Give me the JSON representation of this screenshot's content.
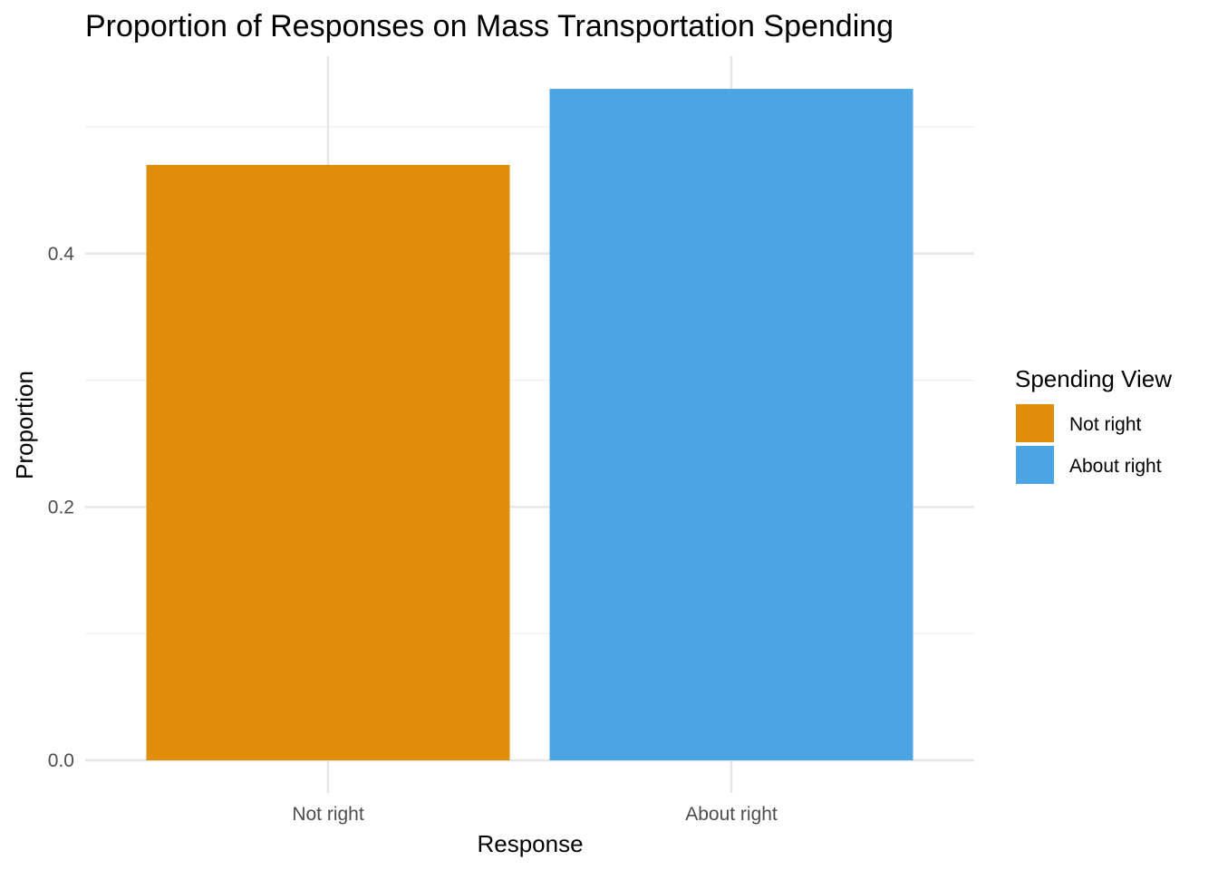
{
  "chart_data": {
    "type": "bar",
    "title": "Proportion of Responses on Mass Transportation Spending",
    "xlabel": "Response",
    "ylabel": "Proportion",
    "categories": [
      "Not right",
      "About right"
    ],
    "values": [
      0.47,
      0.53
    ],
    "colors": [
      "#E08E0A",
      "#4AA5E2"
    ],
    "ylim": [
      0,
      0.55
    ],
    "yticks": [
      0.0,
      0.2,
      0.4
    ],
    "ytick_labels": [
      "0.0",
      "0.2",
      "0.4"
    ],
    "grid": true,
    "legend": {
      "title": "Spending View",
      "placement": "right",
      "entries": [
        {
          "label": "Not right",
          "color": "#E08E0A"
        },
        {
          "label": "About right",
          "color": "#4AA5E2"
        }
      ]
    }
  }
}
